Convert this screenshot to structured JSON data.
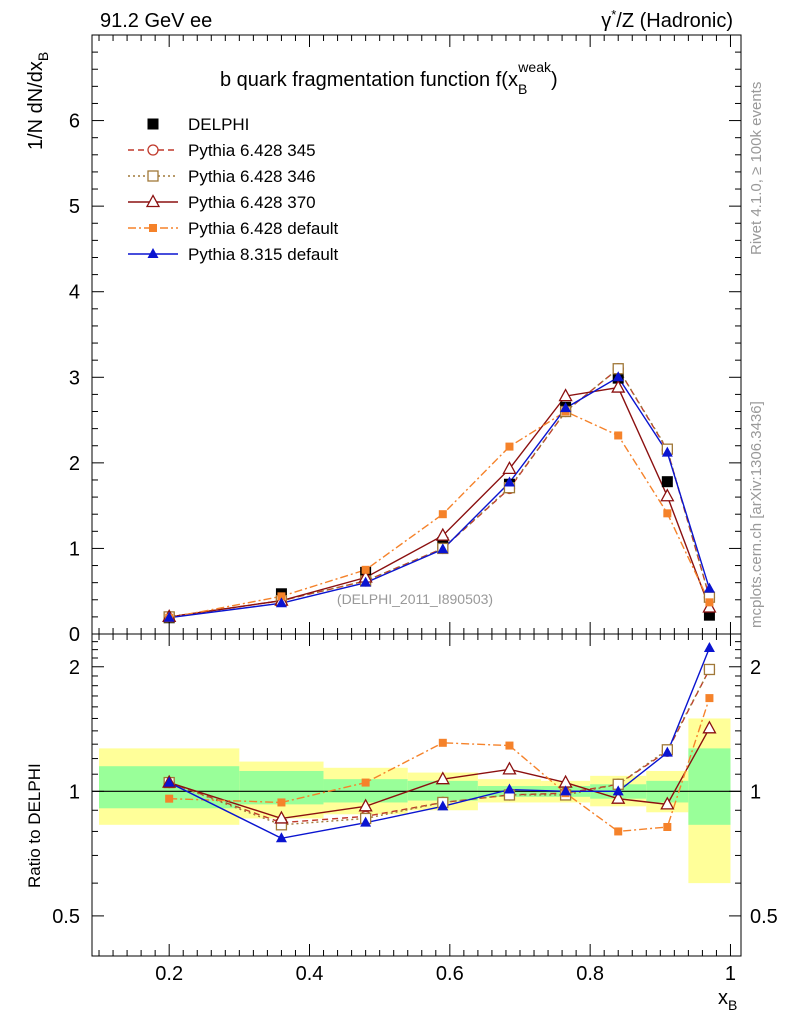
{
  "header": {
    "left": "91.2 GeV ee",
    "right_prefix": "γ",
    "right_suffix": "/Z (Hadronic)",
    "right_sup": "*"
  },
  "side_text": {
    "version": "Rivet 4.1.0, ≥ 100k events",
    "site": "mcplots.cern.ch [arXiv:1306.3436]"
  },
  "chart_data": {
    "type": "line",
    "title_main": "b quark fragmentation function f(x",
    "title_sub": "B",
    "title_sup": "weak",
    "title_close": ")",
    "ylabel_main": "1/N  dN/dx",
    "ylabel_sub": "B",
    "xlabel_main": "x",
    "xlabel_sub": "B",
    "ratio_ylabel": "Ratio to DELPHI",
    "watermark": "(DELPHI_2011_I890503)",
    "xlim": [
      0.09,
      1.015
    ],
    "ylim": [
      0,
      7.0
    ],
    "ratio_ylim": [
      0.4,
      2.4
    ],
    "xticks": [
      "0.2",
      "0.4",
      "0.6",
      "0.8",
      "1"
    ],
    "yticks": [
      "0",
      "1",
      "2",
      "3",
      "4",
      "5",
      "6"
    ],
    "ratio_yticks": [
      "0.5",
      "1",
      "2"
    ],
    "x": [
      0.2,
      0.36,
      0.48,
      0.59,
      0.685,
      0.765,
      0.84,
      0.91,
      0.97
    ],
    "bin_edges": [
      0.1,
      0.3,
      0.42,
      0.54,
      0.64,
      0.73,
      0.8,
      0.88,
      0.94,
      1.0
    ],
    "data": {
      "name": "DELPHI",
      "color": "#000000",
      "values": [
        0.19,
        0.47,
        0.72,
        1.07,
        1.75,
        2.65,
        2.99,
        1.78,
        0.22
      ]
    },
    "band_inner": [
      1.15,
      1.12,
      1.07,
      1.06,
      1.03,
      1.03,
      1.04,
      1.06,
      1.27
    ],
    "band_inner_low": [
      0.91,
      0.93,
      0.94,
      0.95,
      0.97,
      0.97,
      0.96,
      0.94,
      0.83
    ],
    "band_outer": [
      1.27,
      1.18,
      1.14,
      1.11,
      1.07,
      1.06,
      1.09,
      1.12,
      1.5
    ],
    "band_outer_low": [
      0.83,
      0.86,
      0.88,
      0.9,
      0.94,
      0.94,
      0.92,
      0.89,
      0.6
    ],
    "series": [
      {
        "name": "Pythia 6.428 345",
        "color": "#c0392b",
        "dash": "6,4",
        "marker": "circle-open",
        "values": [
          0.2,
          0.39,
          0.62,
          1.0,
          1.7,
          2.6,
          3.1,
          2.15,
          0.43
        ],
        "ratio": [
          1.05,
          0.84,
          0.87,
          0.94,
          0.98,
          0.99,
          1.04,
          1.25,
          1.97
        ]
      },
      {
        "name": "Pythia 6.428 346",
        "color": "#a07838",
        "dash": "2,3",
        "marker": "square-open",
        "values": [
          0.2,
          0.39,
          0.62,
          1.0,
          1.71,
          2.6,
          3.1,
          2.16,
          0.43
        ],
        "ratio": [
          1.05,
          0.83,
          0.86,
          0.94,
          0.98,
          0.98,
          1.04,
          1.26,
          1.97
        ]
      },
      {
        "name": "Pythia 6.428 370",
        "color": "#8b1010",
        "dash": "",
        "marker": "triangle-open",
        "values": [
          0.2,
          0.39,
          0.66,
          1.15,
          1.93,
          2.78,
          2.88,
          1.61,
          0.31
        ],
        "ratio": [
          1.05,
          0.86,
          0.92,
          1.07,
          1.13,
          1.05,
          0.96,
          0.93,
          1.42
        ]
      },
      {
        "name": "Pythia 6.428 default",
        "color": "#f5822a",
        "dash": "8,3,2,3",
        "marker": "square-filled",
        "values": [
          0.19,
          0.44,
          0.75,
          1.4,
          2.19,
          2.6,
          2.32,
          1.41,
          0.37
        ],
        "ratio": [
          0.96,
          0.94,
          1.05,
          1.31,
          1.29,
          0.99,
          0.8,
          0.82,
          1.68
        ]
      },
      {
        "name": "Pythia 8.315 default",
        "color": "#0a14d0",
        "dash": "",
        "marker": "triangle-filled",
        "values": [
          0.19,
          0.36,
          0.6,
          0.99,
          1.77,
          2.64,
          3.0,
          2.12,
          0.53
        ],
        "ratio": [
          1.05,
          0.77,
          0.84,
          0.92,
          1.01,
          1.0,
          1.0,
          1.24,
          2.22
        ]
      }
    ]
  }
}
